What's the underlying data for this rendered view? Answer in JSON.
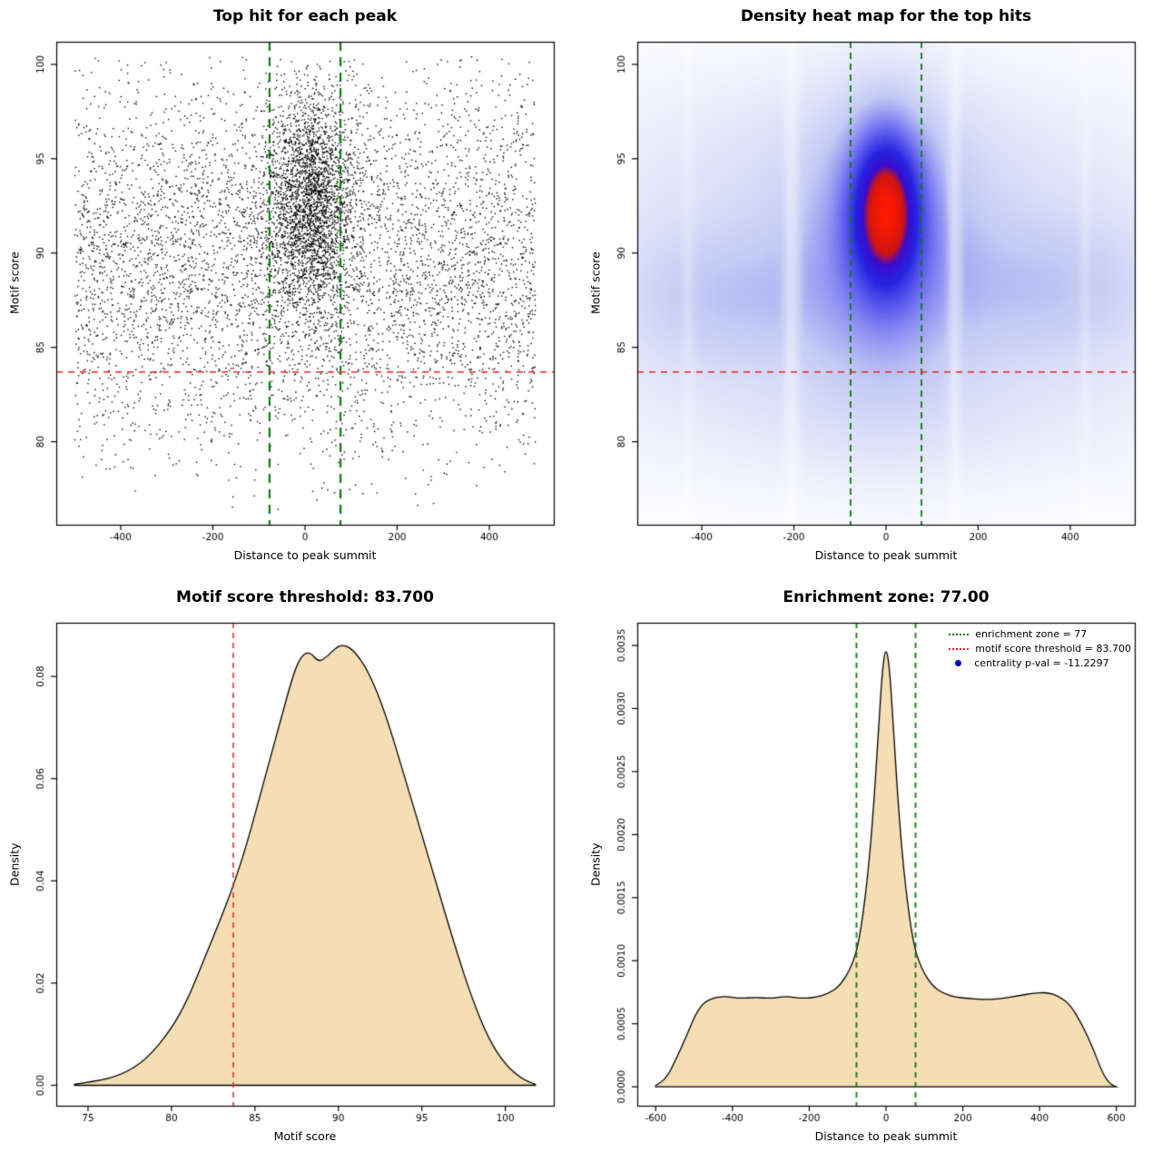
{
  "page": {
    "background": "#ffffff"
  },
  "chart_data": [
    {
      "type": "scatter",
      "title": "Top hit for each peak",
      "xlabel": "Distance to peak summit",
      "ylabel": "Motif score",
      "xlim": [
        -540,
        540
      ],
      "ylim": [
        75.6,
        101.2
      ],
      "xticks": [
        -400,
        -200,
        0,
        200,
        400
      ],
      "xtick_labels": [
        "-400",
        "-200",
        "0",
        "200",
        "400"
      ],
      "yticks": [
        80,
        85,
        90,
        95,
        100
      ],
      "ytick_labels": [
        "80",
        "85",
        "90",
        "95",
        "100"
      ],
      "point_color": "#000000",
      "points_distribution": {
        "seed": 20240817,
        "background": {
          "n": 5200,
          "x_range": [
            -500,
            500
          ],
          "y_mean": 89.4,
          "y_sd": 5.0,
          "y_range": [
            76.4,
            100.4
          ]
        },
        "cluster": {
          "n": 2600,
          "x_mean": 10,
          "x_sd": 48,
          "x_range": [
            -500,
            500
          ],
          "y_mean": 92.7,
          "y_sd": 2.9,
          "y_range": [
            76.4,
            100.4
          ]
        }
      },
      "enrichment_zone": {
        "x": [
          -77,
          77
        ],
        "color": "#0f7a0f",
        "dash": [
          10,
          7
        ],
        "width": 2.2
      },
      "score_threshold": {
        "y": 83.7,
        "color": "#ee2222",
        "dash": [
          7,
          6
        ],
        "width": 1.5
      }
    },
    {
      "type": "heatmap",
      "title": "Density heat map for the top hits",
      "xlabel": "Distance to peak summit",
      "ylabel": "Motif score",
      "xlim": [
        -540,
        540
      ],
      "ylim": [
        75.6,
        101.2
      ],
      "xticks": [
        -400,
        -200,
        0,
        200,
        400
      ],
      "xtick_labels": [
        "-400",
        "-200",
        "0",
        "200",
        "400"
      ],
      "yticks": [
        80,
        85,
        90,
        95,
        100
      ],
      "ytick_labels": [
        "80",
        "85",
        "90",
        "95",
        "100"
      ],
      "gamma": 0.8,
      "blobs": [
        {
          "a": 1.0,
          "x": 0,
          "y": 92.4,
          "sx": 52,
          "sy": 2.9
        },
        {
          "a": 0.4,
          "x": 0,
          "y": 90.2,
          "sx": 120,
          "sy": 5.0
        },
        {
          "a": 0.22,
          "x": -350,
          "y": 87.6,
          "sx": 175,
          "sy": 2.7
        },
        {
          "a": 0.22,
          "x": 360,
          "y": 88.1,
          "sx": 175,
          "sy": 2.7
        },
        {
          "a": 0.16,
          "x": 0,
          "y": 88.4,
          "sx": 430,
          "sy": 5.6
        },
        {
          "a": 0.1,
          "x": -60,
          "y": 95.0,
          "sx": 420,
          "sy": 3.4
        },
        {
          "a": 0.07,
          "x": 0,
          "y": 81.3,
          "sx": 430,
          "sy": 2.6
        }
      ],
      "white_gaps": [
        {
          "x": -205,
          "w": 13,
          "s": 0.55
        },
        {
          "x": 150,
          "w": 11,
          "s": 0.5
        },
        {
          "x": -430,
          "w": 10,
          "s": 0.35
        },
        {
          "x": 432,
          "w": 9,
          "s": 0.3
        }
      ],
      "colormap": [
        [
          0,
          "#ffffff"
        ],
        [
          0.28,
          "#c3caf4"
        ],
        [
          0.5,
          "#6a6af0"
        ],
        [
          0.68,
          "#2424e0"
        ],
        [
          0.8,
          "#3c0ccc"
        ],
        [
          0.87,
          "#cc1414"
        ],
        [
          1,
          "#ff1a00"
        ]
      ],
      "enrichment_zone": {
        "x": [
          -77,
          77
        ],
        "color": "#0f7a0f",
        "dash": [
          7,
          5
        ],
        "width": 1.8
      },
      "score_threshold": {
        "y": 83.7,
        "color": "#ee2222",
        "dash": [
          7,
          6
        ],
        "width": 1.5
      }
    },
    {
      "type": "area",
      "title": "Motif score threshold: 83.700",
      "xlabel": "Motif score",
      "ylabel": "Density",
      "xlim": [
        73.1,
        102.9
      ],
      "ylim": [
        -0.004,
        0.0905
      ],
      "xticks": [
        75,
        80,
        85,
        90,
        95,
        100
      ],
      "xtick_labels": [
        "75",
        "80",
        "85",
        "90",
        "95",
        "100"
      ],
      "yticks": [
        0,
        0.02,
        0.04,
        0.06,
        0.08
      ],
      "ytick_labels": [
        "0.00",
        "0.02",
        "0.04",
        "0.06",
        "0.08"
      ],
      "fill": "#f5deb3",
      "stroke": "#000000",
      "points": [
        [
          74.2,
          0.0002
        ],
        [
          75.5,
          0.0008
        ],
        [
          77,
          0.002
        ],
        [
          78.5,
          0.005
        ],
        [
          80,
          0.011
        ],
        [
          81,
          0.017
        ],
        [
          82,
          0.025
        ],
        [
          83,
          0.033
        ],
        [
          83.7,
          0.039
        ],
        [
          84.5,
          0.047
        ],
        [
          85.5,
          0.059
        ],
        [
          86.5,
          0.071
        ],
        [
          87.3,
          0.0805
        ],
        [
          87.8,
          0.0842
        ],
        [
          88.3,
          0.0848
        ],
        [
          88.8,
          0.0828
        ],
        [
          89.3,
          0.0838
        ],
        [
          89.9,
          0.0858
        ],
        [
          90.4,
          0.0862
        ],
        [
          91,
          0.0848
        ],
        [
          91.8,
          0.081
        ],
        [
          92.8,
          0.073
        ],
        [
          94,
          0.06
        ],
        [
          95,
          0.049
        ],
        [
          96,
          0.038
        ],
        [
          97,
          0.027
        ],
        [
          98,
          0.017
        ],
        [
          99,
          0.009
        ],
        [
          100,
          0.004
        ],
        [
          101,
          0.0012
        ],
        [
          101.8,
          0.0002
        ]
      ],
      "score_threshold": {
        "x": 83.7,
        "color": "#ee2222",
        "dash": [
          6,
          5
        ],
        "width": 1.5
      }
    },
    {
      "type": "area",
      "title": "Enrichment zone: 77.00",
      "xlabel": "Distance to peak summit",
      "ylabel": "Density",
      "xlim": [
        -648,
        648
      ],
      "ylim": [
        -0.00015,
        0.00368
      ],
      "xticks": [
        -600,
        -400,
        -200,
        0,
        200,
        400,
        600
      ],
      "xtick_labels": [
        "-600",
        "-400",
        "-200",
        "0",
        "200",
        "400",
        "600"
      ],
      "yticks": [
        0,
        0.0005,
        0.001,
        0.0015,
        0.002,
        0.0025,
        0.003,
        0.0035
      ],
      "ytick_labels": [
        "0.0000",
        "0.0005",
        "0.0010",
        "0.0015",
        "0.0020",
        "0.0025",
        "0.0030",
        "0.0035"
      ],
      "fill": "#f5deb3",
      "stroke": "#000000",
      "points": [
        [
          -600,
          1e-05
        ],
        [
          -575,
          5e-05
        ],
        [
          -550,
          0.0002
        ],
        [
          -520,
          0.0004
        ],
        [
          -490,
          0.00062
        ],
        [
          -460,
          0.0007
        ],
        [
          -420,
          0.00072
        ],
        [
          -380,
          0.0007
        ],
        [
          -340,
          0.00071
        ],
        [
          -300,
          0.0007
        ],
        [
          -260,
          0.00072
        ],
        [
          -220,
          0.0007
        ],
        [
          -180,
          0.00071
        ],
        [
          -150,
          0.00074
        ],
        [
          -120,
          0.0008
        ],
        [
          -90,
          0.00095
        ],
        [
          -70,
          0.00115
        ],
        [
          -50,
          0.0016
        ],
        [
          -35,
          0.0021
        ],
        [
          -20,
          0.0028
        ],
        [
          -10,
          0.0033
        ],
        [
          0,
          0.0035
        ],
        [
          10,
          0.0033
        ],
        [
          20,
          0.0028
        ],
        [
          35,
          0.0021
        ],
        [
          50,
          0.0016
        ],
        [
          70,
          0.00115
        ],
        [
          90,
          0.00095
        ],
        [
          120,
          0.0008
        ],
        [
          150,
          0.00074
        ],
        [
          180,
          0.00071
        ],
        [
          220,
          0.0007
        ],
        [
          260,
          0.00069
        ],
        [
          300,
          0.0007
        ],
        [
          340,
          0.00072
        ],
        [
          380,
          0.00074
        ],
        [
          420,
          0.00075
        ],
        [
          450,
          0.00072
        ],
        [
          480,
          0.00065
        ],
        [
          510,
          0.0005
        ],
        [
          540,
          0.0003
        ],
        [
          565,
          0.0001
        ],
        [
          585,
          2e-05
        ],
        [
          600,
          0
        ]
      ],
      "enrichment_zone": {
        "x": [
          -77,
          77
        ],
        "color": "#0f7a0f",
        "dash": [
          6,
          5
        ],
        "width": 1.8
      },
      "legend": {
        "items": [
          {
            "label": "enrichment zone = 77",
            "style": "dotted-line",
            "color": "#0f7a0f"
          },
          {
            "label": "motif score threshold = 83.700",
            "style": "dotted-line",
            "color": "#ee2222"
          },
          {
            "label": "centrality p-val = -11.2297",
            "style": "point",
            "color": "#0000cc"
          }
        ]
      }
    }
  ]
}
